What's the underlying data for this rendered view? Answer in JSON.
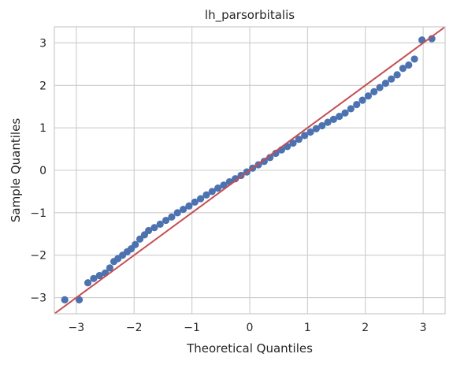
{
  "chart_data": {
    "type": "scatter",
    "title": "lh_parsorbitalis",
    "xlabel": "Theoretical Quantiles",
    "ylabel": "Sample Quantiles",
    "xlim": [
      -3.38,
      3.38
    ],
    "ylim": [
      -3.38,
      3.38
    ],
    "xticks": [
      -3,
      -2,
      -1,
      0,
      1,
      2,
      3
    ],
    "yticks": [
      -3,
      -2,
      -1,
      0,
      1,
      2,
      3
    ],
    "xtick_labels": [
      "−3",
      "−2",
      "−1",
      "0",
      "1",
      "2",
      "3"
    ],
    "ytick_labels": [
      "−3",
      "−2",
      "−1",
      "0",
      "1",
      "2",
      "3"
    ],
    "grid": true,
    "series": [
      {
        "kind": "points",
        "color": "#4c72b0",
        "points": [
          [
            -3.2,
            -3.05
          ],
          [
            -2.95,
            -3.05
          ],
          [
            -2.8,
            -2.65
          ],
          [
            -2.7,
            -2.55
          ],
          [
            -2.6,
            -2.48
          ],
          [
            -2.5,
            -2.42
          ],
          [
            -2.42,
            -2.3
          ],
          [
            -2.35,
            -2.15
          ],
          [
            -2.28,
            -2.08
          ],
          [
            -2.2,
            -2.0
          ],
          [
            -2.12,
            -1.92
          ],
          [
            -2.05,
            -1.85
          ],
          [
            -1.98,
            -1.75
          ],
          [
            -1.9,
            -1.62
          ],
          [
            -1.82,
            -1.52
          ],
          [
            -1.75,
            -1.42
          ],
          [
            -1.65,
            -1.35
          ],
          [
            -1.55,
            -1.27
          ],
          [
            -1.45,
            -1.18
          ],
          [
            -1.35,
            -1.1
          ],
          [
            -1.25,
            -1.0
          ],
          [
            -1.15,
            -0.92
          ],
          [
            -1.05,
            -0.84
          ],
          [
            -0.95,
            -0.75
          ],
          [
            -0.85,
            -0.67
          ],
          [
            -0.75,
            -0.58
          ],
          [
            -0.65,
            -0.5
          ],
          [
            -0.55,
            -0.42
          ],
          [
            -0.45,
            -0.35
          ],
          [
            -0.35,
            -0.27
          ],
          [
            -0.25,
            -0.2
          ],
          [
            -0.15,
            -0.12
          ],
          [
            -0.05,
            -0.04
          ],
          [
            0.05,
            0.05
          ],
          [
            0.15,
            0.13
          ],
          [
            0.25,
            0.21
          ],
          [
            0.35,
            0.3
          ],
          [
            0.45,
            0.4
          ],
          [
            0.55,
            0.48
          ],
          [
            0.65,
            0.56
          ],
          [
            0.75,
            0.64
          ],
          [
            0.85,
            0.73
          ],
          [
            0.95,
            0.82
          ],
          [
            1.05,
            0.9
          ],
          [
            1.15,
            0.98
          ],
          [
            1.25,
            1.05
          ],
          [
            1.35,
            1.13
          ],
          [
            1.45,
            1.2
          ],
          [
            1.55,
            1.27
          ],
          [
            1.65,
            1.35
          ],
          [
            1.75,
            1.45
          ],
          [
            1.85,
            1.55
          ],
          [
            1.95,
            1.65
          ],
          [
            2.05,
            1.75
          ],
          [
            2.15,
            1.85
          ],
          [
            2.25,
            1.95
          ],
          [
            2.35,
            2.05
          ],
          [
            2.45,
            2.15
          ],
          [
            2.55,
            2.25
          ],
          [
            2.65,
            2.4
          ],
          [
            2.75,
            2.48
          ],
          [
            2.85,
            2.62
          ],
          [
            2.98,
            3.07
          ],
          [
            3.15,
            3.1
          ]
        ]
      },
      {
        "kind": "reference-line",
        "color": "#c44e52",
        "slope": 1,
        "intercept": 0
      }
    ]
  }
}
